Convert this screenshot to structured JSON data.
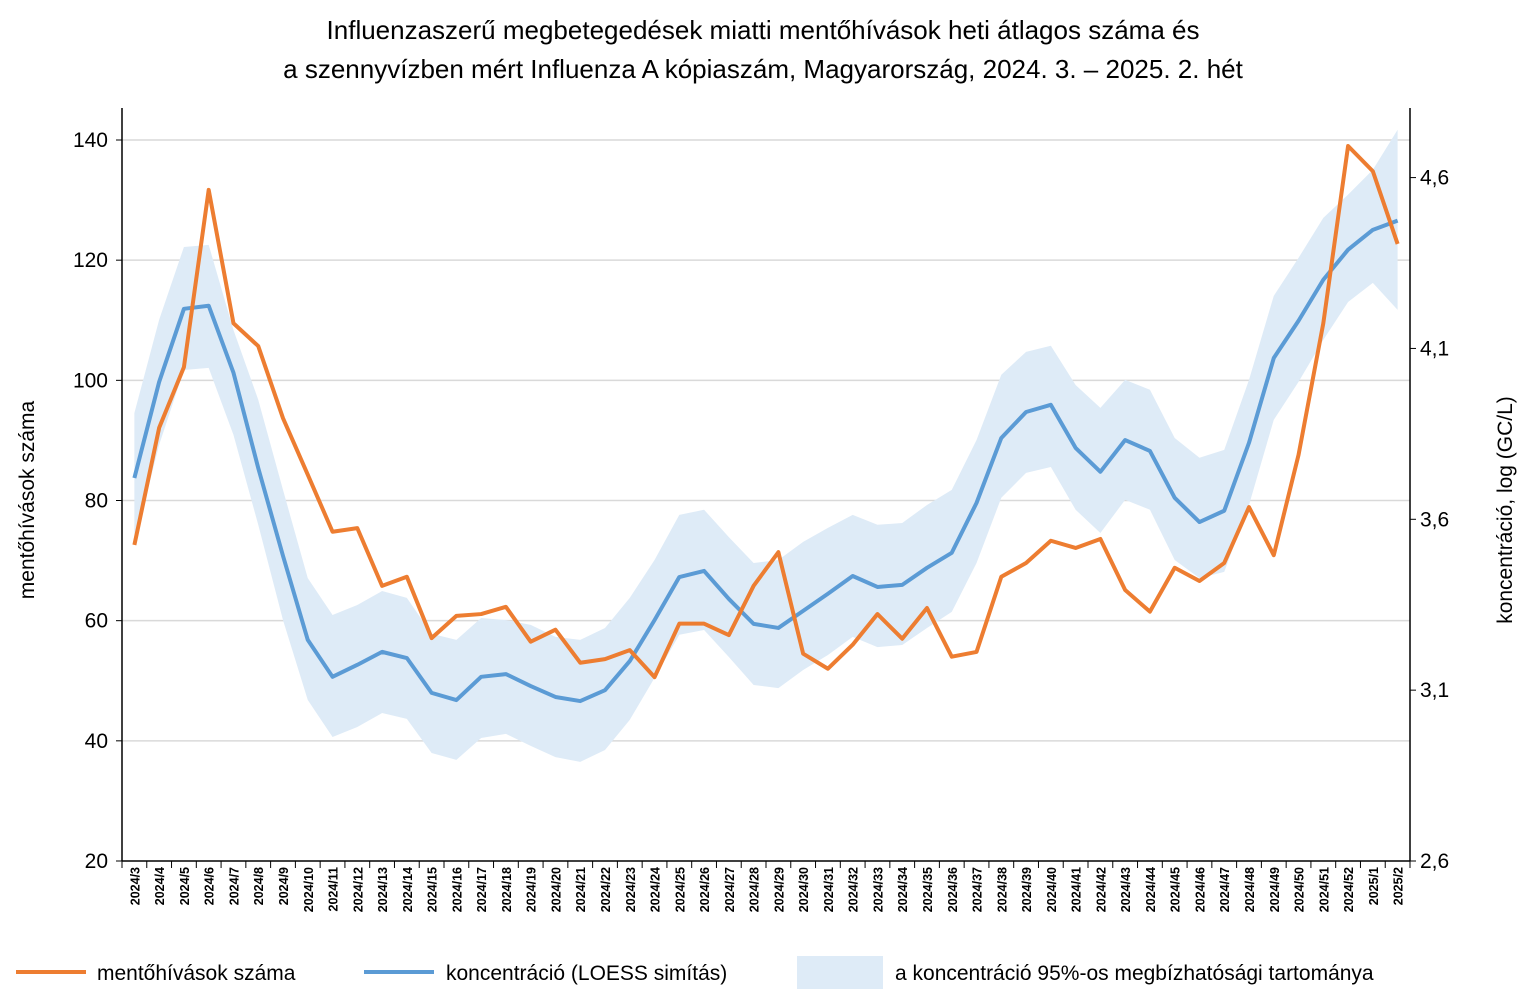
{
  "chart_data": {
    "type": "line",
    "title": [
      "Influenzaszerű megbetegedések miatti mentőhívások heti átlagos száma és",
      "a szennyvízben mért Influenza A kópiaszám, Magyarország, 2024. 3. – 2025. 2. hét"
    ],
    "ylabel": "mentőhívások száma",
    "y2label": "koncentráció, log (GC/L)",
    "ylim": [
      20,
      140
    ],
    "y2lim": [
      2.6,
      4.71
    ],
    "yticks": [
      "20",
      "40",
      "60",
      "80",
      "100",
      "120",
      "140"
    ],
    "y2ticks": [
      "2,6",
      "3,1",
      "3,6",
      "4,1",
      "4,6"
    ],
    "grid": true,
    "legend_position": "bottom",
    "categories": [
      "2024/3",
      "2024/4",
      "2024/5",
      "2024/6",
      "2024/7",
      "2024/8",
      "2024/9",
      "2024/10",
      "2024/11",
      "2024/12",
      "2024/13",
      "2024/14",
      "2024/15",
      "2024/16",
      "2024/17",
      "2024/18",
      "2024/19",
      "2024/20",
      "2024/21",
      "2024/22",
      "2024/23",
      "2024/24",
      "2024/25",
      "2024/26",
      "2024/27",
      "2024/28",
      "2024/29",
      "2024/30",
      "2024/31",
      "2024/32",
      "2024/33",
      "2024/34",
      "2024/35",
      "2024/36",
      "2024/37",
      "2024/38",
      "2024/39",
      "2024/40",
      "2024/41",
      "2024/42",
      "2024/43",
      "2024/44",
      "2024/45",
      "2024/46",
      "2024/47",
      "2024/48",
      "2024/49",
      "2024/50",
      "2024/51",
      "2024/52",
      "2025/1",
      "2025/2"
    ],
    "series": [
      {
        "name": "mentőhívások száma",
        "axis": "left",
        "color": "#ED7D31",
        "values": [
          72.6,
          92.1,
          102.2,
          131.7,
          109.5,
          105.7,
          93.7,
          84.3,
          74.8,
          75.4,
          65.8,
          67.3,
          57.1,
          60.8,
          61.1,
          62.3,
          56.5,
          58.5,
          53.0,
          53.6,
          55.1,
          50.6,
          59.5,
          59.5,
          57.6,
          65.8,
          71.4,
          54.5,
          52.0,
          56.0,
          61.1,
          57.0,
          62.1,
          54.0,
          54.8,
          67.3,
          69.6,
          73.3,
          72.1,
          73.6,
          65.1,
          61.5,
          68.8,
          66.6,
          69.6,
          78.9,
          70.9,
          87.6,
          109.5,
          139.0,
          134.8,
          122.7
        ]
      },
      {
        "name": "koncentráció (LOESS simítás)",
        "axis": "right",
        "color": "#5B9BD5",
        "values": [
          3.721,
          4.002,
          4.216,
          4.225,
          4.029,
          3.75,
          3.493,
          3.247,
          3.139,
          3.174,
          3.212,
          3.194,
          3.092,
          3.071,
          3.139,
          3.147,
          3.112,
          3.08,
          3.068,
          3.1,
          3.185,
          3.305,
          3.431,
          3.449,
          3.367,
          3.294,
          3.282,
          3.332,
          3.382,
          3.434,
          3.402,
          3.408,
          3.458,
          3.502,
          3.648,
          3.838,
          3.914,
          3.935,
          3.809,
          3.739,
          3.832,
          3.8,
          3.663,
          3.592,
          3.625,
          3.824,
          4.072,
          4.181,
          4.301,
          4.389,
          4.447,
          4.474
        ]
      },
      {
        "name": "a koncentráció 95%-os megbízhatósági tartománya",
        "axis": "right",
        "color": "#DEEBF7",
        "type": "band",
        "upper": [
          3.911,
          4.184,
          4.397,
          4.403,
          4.154,
          3.95,
          3.686,
          3.428,
          3.32,
          3.349,
          3.39,
          3.37,
          3.265,
          3.247,
          3.311,
          3.305,
          3.291,
          3.256,
          3.247,
          3.282,
          3.37,
          3.481,
          3.613,
          3.628,
          3.548,
          3.472,
          3.481,
          3.534,
          3.575,
          3.613,
          3.584,
          3.589,
          3.642,
          3.686,
          3.832,
          4.023,
          4.09,
          4.108,
          3.993,
          3.926,
          4.008,
          3.979,
          3.838,
          3.78,
          3.803,
          4.008,
          4.254,
          4.365,
          4.482,
          4.55,
          4.623,
          4.74
        ],
        "lower": [
          3.531,
          3.818,
          4.037,
          4.043,
          3.847,
          3.584,
          3.305,
          3.071,
          2.963,
          2.992,
          3.033,
          3.016,
          2.916,
          2.896,
          2.96,
          2.972,
          2.937,
          2.904,
          2.89,
          2.925,
          3.013,
          3.136,
          3.262,
          3.276,
          3.197,
          3.115,
          3.106,
          3.159,
          3.203,
          3.256,
          3.226,
          3.232,
          3.282,
          3.329,
          3.472,
          3.663,
          3.736,
          3.753,
          3.628,
          3.56,
          3.657,
          3.628,
          3.481,
          3.428,
          3.446,
          3.642,
          3.891,
          4.002,
          4.125,
          4.236,
          4.292,
          4.213
        ]
      }
    ]
  }
}
